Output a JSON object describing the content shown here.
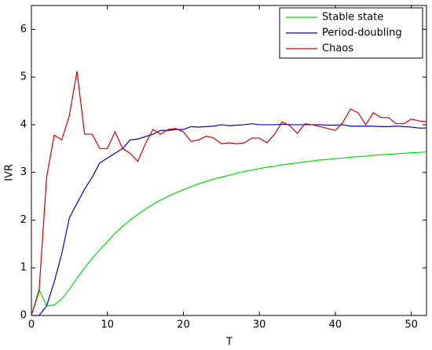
{
  "chart_data": {
    "type": "line",
    "xlabel": "T",
    "ylabel": "IVR",
    "x": [
      0,
      1,
      2,
      3,
      4,
      5,
      6,
      7,
      8,
      9,
      10,
      11,
      12,
      13,
      14,
      15,
      16,
      17,
      18,
      19,
      20,
      21,
      22,
      23,
      24,
      25,
      26,
      27,
      28,
      29,
      30,
      31,
      32,
      33,
      34,
      35,
      36,
      37,
      38,
      39,
      40,
      41,
      42,
      43,
      44,
      45,
      46,
      47,
      48,
      49,
      50,
      51,
      52
    ],
    "series": [
      {
        "name": "Stable state",
        "color": "#00e000",
        "values": [
          0,
          0.55,
          0.2,
          0.22,
          0.35,
          0.55,
          0.78,
          1.0,
          1.2,
          1.38,
          1.55,
          1.72,
          1.87,
          2.0,
          2.12,
          2.23,
          2.33,
          2.42,
          2.5,
          2.57,
          2.64,
          2.7,
          2.76,
          2.81,
          2.86,
          2.9,
          2.94,
          2.98,
          3.02,
          3.05,
          3.08,
          3.11,
          3.13,
          3.16,
          3.18,
          3.2,
          3.22,
          3.24,
          3.26,
          3.27,
          3.29,
          3.3,
          3.32,
          3.33,
          3.34,
          3.36,
          3.37,
          3.38,
          3.39,
          3.4,
          3.41,
          3.42,
          3.43
        ]
      },
      {
        "name": "Period-doubling",
        "color": "#0000c0",
        "values": [
          0,
          0,
          0.2,
          0.7,
          1.3,
          2.05,
          2.35,
          2.65,
          2.9,
          3.2,
          3.3,
          3.4,
          3.5,
          3.68,
          3.7,
          3.75,
          3.8,
          3.88,
          3.88,
          3.9,
          3.9,
          3.96,
          3.95,
          3.96,
          3.97,
          4.0,
          3.98,
          3.99,
          4.0,
          4.02,
          4.0,
          4.0,
          4.0,
          4.01,
          4.0,
          4.0,
          4.0,
          4.0,
          4.0,
          3.99,
          3.99,
          4.0,
          3.97,
          3.97,
          3.97,
          3.97,
          3.96,
          3.96,
          3.97,
          3.96,
          3.95,
          3.93,
          3.93
        ]
      },
      {
        "name": "Chaos",
        "color": "#d00000",
        "values": [
          0,
          0.5,
          2.9,
          3.78,
          3.68,
          4.2,
          5.12,
          3.8,
          3.8,
          3.5,
          3.5,
          3.85,
          3.5,
          3.4,
          3.23,
          3.6,
          3.9,
          3.8,
          3.9,
          3.92,
          3.85,
          3.65,
          3.68,
          3.76,
          3.72,
          3.6,
          3.62,
          3.6,
          3.62,
          3.72,
          3.72,
          3.62,
          3.8,
          4.06,
          3.98,
          3.82,
          4.02,
          4.0,
          3.96,
          3.92,
          3.88,
          4.05,
          4.33,
          4.25,
          4.0,
          4.25,
          4.15,
          4.15,
          4.02,
          4.02,
          4.12,
          4.08,
          4.06
        ]
      }
    ],
    "xlim": [
      0,
      52
    ],
    "ylim": [
      0,
      6.5
    ],
    "xticks": [
      0,
      10,
      20,
      30,
      40,
      50
    ],
    "yticks": [
      0,
      1,
      2,
      3,
      4,
      5,
      6
    ],
    "legend": "northeast"
  }
}
